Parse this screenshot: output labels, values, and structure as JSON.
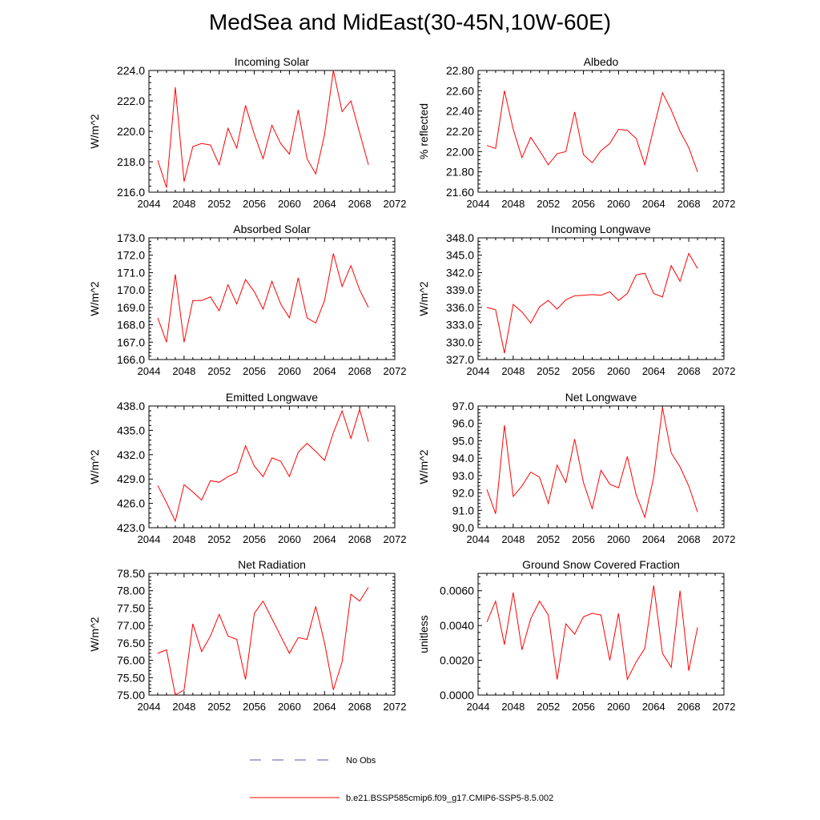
{
  "title": "MedSea and MidEast(30-45N,10W-60E)",
  "colors": {
    "series": "#ff0000",
    "obs": "#5a5aa0",
    "axis": "#000000"
  },
  "legend": {
    "obs_label": "No Obs",
    "series_label": "b.e21.BSSP585cmip6.f09_g17.CMIP6-SSP5-8.5.002"
  },
  "chart_data": [
    {
      "type": "line",
      "title": "Incoming Solar",
      "ylabel": "W/m^2",
      "xlim": [
        2044,
        2072
      ],
      "ylim": [
        216.0,
        224.0
      ],
      "x_ticks": [
        2044,
        2048,
        2052,
        2056,
        2060,
        2064,
        2068,
        2072
      ],
      "y_ticks": [
        216.0,
        218.0,
        220.0,
        222.0,
        224.0
      ],
      "y_decimals": 1,
      "x": [
        2045,
        2046,
        2047,
        2048,
        2049,
        2050,
        2051,
        2052,
        2053,
        2054,
        2055,
        2056,
        2057,
        2058,
        2059,
        2060,
        2061,
        2062,
        2063,
        2064,
        2065,
        2066,
        2067,
        2068,
        2069
      ],
      "values": [
        218.1,
        216.3,
        222.9,
        216.7,
        219.0,
        219.2,
        219.1,
        217.8,
        220.2,
        218.9,
        221.7,
        219.8,
        218.2,
        220.4,
        219.2,
        218.5,
        221.4,
        218.2,
        217.2,
        219.8,
        224.0,
        221.3,
        222.0,
        219.9,
        217.8
      ]
    },
    {
      "type": "line",
      "title": "Albedo",
      "ylabel": "% reflected",
      "xlim": [
        2044,
        2072
      ],
      "ylim": [
        21.6,
        22.8
      ],
      "x_ticks": [
        2044,
        2048,
        2052,
        2056,
        2060,
        2064,
        2068,
        2072
      ],
      "y_ticks": [
        21.6,
        21.8,
        22.0,
        22.2,
        22.4,
        22.6,
        22.8
      ],
      "y_decimals": 2,
      "x": [
        2045,
        2046,
        2047,
        2048,
        2049,
        2050,
        2051,
        2052,
        2053,
        2054,
        2055,
        2056,
        2057,
        2058,
        2059,
        2060,
        2061,
        2062,
        2063,
        2064,
        2065,
        2066,
        2067,
        2068,
        2069
      ],
      "values": [
        22.06,
        22.03,
        22.6,
        22.22,
        21.94,
        22.14,
        22.01,
        21.87,
        21.98,
        22.0,
        22.39,
        21.97,
        21.89,
        22.01,
        22.08,
        22.22,
        22.21,
        22.13,
        21.87,
        22.23,
        22.58,
        22.41,
        22.2,
        22.04,
        21.8
      ]
    },
    {
      "type": "line",
      "title": "Absorbed Solar",
      "ylabel": "W/m^2",
      "xlim": [
        2044,
        2072
      ],
      "ylim": [
        166.0,
        173.0
      ],
      "x_ticks": [
        2044,
        2048,
        2052,
        2056,
        2060,
        2064,
        2068,
        2072
      ],
      "y_ticks": [
        166.0,
        167.0,
        168.0,
        169.0,
        170.0,
        171.0,
        172.0,
        173.0
      ],
      "y_decimals": 1,
      "x": [
        2045,
        2046,
        2047,
        2048,
        2049,
        2050,
        2051,
        2052,
        2053,
        2054,
        2055,
        2056,
        2057,
        2058,
        2059,
        2060,
        2061,
        2062,
        2063,
        2064,
        2065,
        2066,
        2067,
        2068,
        2069
      ],
      "values": [
        168.4,
        167.0,
        170.9,
        167.0,
        169.4,
        169.4,
        169.6,
        168.8,
        170.3,
        169.2,
        170.6,
        169.9,
        168.9,
        170.5,
        169.2,
        168.4,
        170.7,
        168.4,
        168.1,
        169.4,
        172.1,
        170.2,
        171.4,
        170.0,
        169.0
      ]
    },
    {
      "type": "line",
      "title": "Incoming Longwave",
      "ylabel": "W/m^2",
      "xlim": [
        2044,
        2072
      ],
      "ylim": [
        327.0,
        348.0
      ],
      "x_ticks": [
        2044,
        2048,
        2052,
        2056,
        2060,
        2064,
        2068,
        2072
      ],
      "y_ticks": [
        327.0,
        330.0,
        333.0,
        336.0,
        339.0,
        342.0,
        345.0,
        348.0
      ],
      "y_decimals": 1,
      "x": [
        2045,
        2046,
        2047,
        2048,
        2049,
        2050,
        2051,
        2052,
        2053,
        2054,
        2055,
        2056,
        2057,
        2058,
        2059,
        2060,
        2061,
        2062,
        2063,
        2064,
        2065,
        2066,
        2067,
        2068,
        2069
      ],
      "values": [
        336.0,
        335.6,
        328.1,
        336.5,
        335.2,
        333.3,
        336.1,
        337.2,
        335.7,
        337.3,
        338.0,
        338.1,
        338.2,
        338.1,
        338.7,
        337.2,
        338.4,
        341.6,
        341.9,
        338.4,
        337.8,
        343.2,
        340.5,
        345.3,
        342.7
      ]
    },
    {
      "type": "line",
      "title": "Emitted Longwave",
      "ylabel": "W/m^2",
      "xlim": [
        2044,
        2072
      ],
      "ylim": [
        423.0,
        438.0
      ],
      "x_ticks": [
        2044,
        2048,
        2052,
        2056,
        2060,
        2064,
        2068,
        2072
      ],
      "y_ticks": [
        423.0,
        426.0,
        429.0,
        432.0,
        435.0,
        438.0
      ],
      "y_decimals": 1,
      "x": [
        2045,
        2046,
        2047,
        2048,
        2049,
        2050,
        2051,
        2052,
        2053,
        2054,
        2055,
        2056,
        2057,
        2058,
        2059,
        2060,
        2061,
        2062,
        2063,
        2064,
        2065,
        2066,
        2067,
        2068,
        2069
      ],
      "values": [
        428.2,
        426.1,
        423.8,
        428.3,
        427.4,
        426.4,
        428.8,
        428.6,
        429.3,
        429.8,
        433.1,
        430.6,
        429.3,
        431.6,
        431.2,
        429.3,
        432.3,
        433.4,
        432.4,
        431.3,
        434.7,
        437.4,
        434.0,
        437.6,
        433.6
      ]
    },
    {
      "type": "line",
      "title": "Net Longwave",
      "ylabel": "W/m^2",
      "xlim": [
        2044,
        2072
      ],
      "ylim": [
        90.0,
        97.0
      ],
      "x_ticks": [
        2044,
        2048,
        2052,
        2056,
        2060,
        2064,
        2068,
        2072
      ],
      "y_ticks": [
        90.0,
        91.0,
        92.0,
        93.0,
        94.0,
        95.0,
        96.0,
        97.0
      ],
      "y_decimals": 1,
      "x": [
        2045,
        2046,
        2047,
        2048,
        2049,
        2050,
        2051,
        2052,
        2053,
        2054,
        2055,
        2056,
        2057,
        2058,
        2059,
        2060,
        2061,
        2062,
        2063,
        2064,
        2065,
        2066,
        2067,
        2068,
        2069
      ],
      "values": [
        92.2,
        90.8,
        95.9,
        91.8,
        92.4,
        93.2,
        92.9,
        91.4,
        93.6,
        92.6,
        95.1,
        92.6,
        91.1,
        93.3,
        92.5,
        92.3,
        94.1,
        91.9,
        90.6,
        92.9,
        96.9,
        94.3,
        93.5,
        92.4,
        90.9
      ]
    },
    {
      "type": "line",
      "title": "Net Radiation",
      "ylabel": "W/m^2",
      "xlim": [
        2044,
        2072
      ],
      "ylim": [
        75.0,
        78.5
      ],
      "x_ticks": [
        2044,
        2048,
        2052,
        2056,
        2060,
        2064,
        2068,
        2072
      ],
      "y_ticks": [
        75.0,
        75.5,
        76.0,
        76.5,
        77.0,
        77.5,
        78.0,
        78.5
      ],
      "y_decimals": 2,
      "x": [
        2045,
        2046,
        2047,
        2048,
        2049,
        2050,
        2051,
        2052,
        2053,
        2054,
        2055,
        2056,
        2057,
        2058,
        2059,
        2060,
        2061,
        2062,
        2063,
        2064,
        2065,
        2066,
        2067,
        2068,
        2069
      ],
      "values": [
        76.2,
        76.3,
        75.0,
        75.15,
        77.05,
        76.25,
        76.7,
        77.32,
        76.7,
        76.6,
        75.45,
        77.35,
        77.7,
        77.2,
        76.7,
        76.2,
        76.65,
        76.6,
        77.55,
        76.5,
        75.15,
        75.95,
        77.9,
        77.7,
        78.1
      ]
    },
    {
      "type": "line",
      "title": "Ground Snow Covered Fraction",
      "ylabel": "unitless",
      "xlim": [
        2044,
        2072
      ],
      "ylim": [
        0.0,
        0.007
      ],
      "x_ticks": [
        2044,
        2048,
        2052,
        2056,
        2060,
        2064,
        2068,
        2072
      ],
      "y_ticks": [
        0.0,
        0.002,
        0.004,
        0.006
      ],
      "y_decimals": 4,
      "x": [
        2045,
        2046,
        2047,
        2048,
        2049,
        2050,
        2051,
        2052,
        2053,
        2054,
        2055,
        2056,
        2057,
        2058,
        2059,
        2060,
        2061,
        2062,
        2063,
        2064,
        2065,
        2066,
        2067,
        2068,
        2069
      ],
      "values": [
        0.0042,
        0.0054,
        0.0029,
        0.0059,
        0.0026,
        0.0044,
        0.0054,
        0.0046,
        0.0009,
        0.0041,
        0.0035,
        0.0045,
        0.0047,
        0.0046,
        0.002,
        0.0047,
        0.0009,
        0.0019,
        0.0027,
        0.0063,
        0.0024,
        0.0016,
        0.006,
        0.0014,
        0.0039
      ]
    }
  ]
}
